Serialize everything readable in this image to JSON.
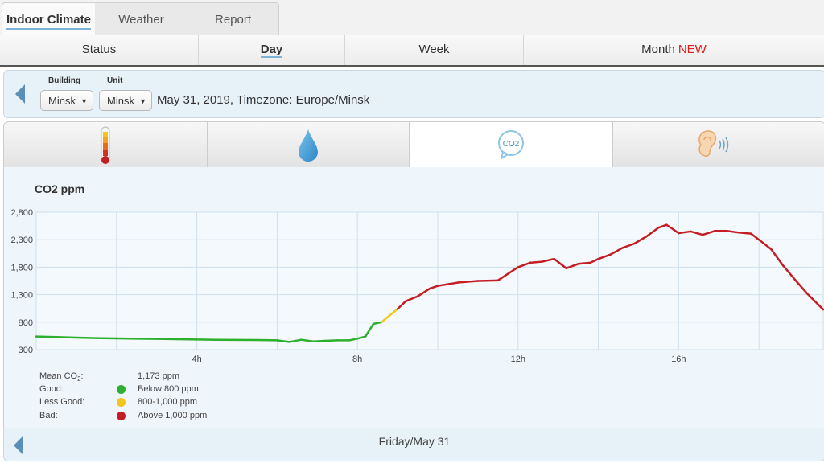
{
  "top_tabs": [
    "Indoor Climate",
    "Weather",
    "Report"
  ],
  "sub_tabs": {
    "status": "Status",
    "day": "Day",
    "week": "Week",
    "month": "Month",
    "month_badge": "NEW"
  },
  "selector": {
    "building_label": "Building",
    "building_value": "Minsk",
    "unit_label": "Unit",
    "unit_value": "Minsk",
    "date_text": "May 31, 2019, Timezone: Europe/Minsk"
  },
  "metric_tabs": [
    {
      "icon": "thermometer-icon",
      "active": false
    },
    {
      "icon": "humidity-drop-icon",
      "active": false
    },
    {
      "icon": "co2-icon",
      "label": "CO2",
      "active": true
    },
    {
      "icon": "noise-ear-icon",
      "active": false
    }
  ],
  "colors": {
    "good": "#2db02d",
    "less_good": "#f2c71b",
    "bad": "#c41e24",
    "accent": "#5b8fb5"
  },
  "legend": {
    "mean_label": "Mean CO",
    "mean_sub": "2",
    "mean_colon": ":",
    "mean_value": "1,173 ppm",
    "good_label": "Good:",
    "good_value": "Below 800 ppm",
    "less_label": "Less Good:",
    "less_value": "800-1,000 ppm",
    "bad_label": "Bad:",
    "bad_value": "Above 1,000 ppm"
  },
  "footer": {
    "date": "Friday/May 31"
  },
  "chart_data": {
    "type": "line",
    "title": "CO2 ppm",
    "xlabel": "",
    "ylabel": "",
    "ylim": [
      300,
      2800
    ],
    "yticks": [
      300,
      800,
      1300,
      1800,
      2300,
      2800
    ],
    "ytick_labels": [
      "300",
      "800",
      "1,300",
      "1,800",
      "2,300",
      "2,800"
    ],
    "xlim": [
      0,
      19.6
    ],
    "xticks": [
      4,
      8,
      12,
      16
    ],
    "xtick_labels": [
      "4h",
      "8h",
      "12h",
      "16h"
    ],
    "grid": true,
    "x": [
      0,
      0.5,
      1,
      1.5,
      2,
      2.5,
      3,
      3.5,
      4,
      4.5,
      5,
      5.5,
      6,
      6.3,
      6.6,
      6.9,
      7.2,
      7.5,
      7.8,
      8,
      8.2,
      8.4,
      8.6,
      8.8,
      9,
      9.2,
      9.5,
      9.8,
      10,
      10.5,
      11,
      11.5,
      12,
      12.3,
      12.6,
      12.9,
      13.2,
      13.5,
      13.8,
      14,
      14.3,
      14.6,
      14.9,
      15.2,
      15.5,
      15.7,
      16,
      16.3,
      16.6,
      16.9,
      17.2,
      17.5,
      17.8,
      18,
      18.3,
      18.6,
      18.9,
      19.2,
      19.6
    ],
    "y": [
      540,
      530,
      520,
      510,
      505,
      500,
      495,
      490,
      485,
      480,
      478,
      475,
      470,
      440,
      480,
      450,
      460,
      470,
      470,
      500,
      540,
      770,
      800,
      920,
      1040,
      1180,
      1270,
      1410,
      1460,
      1520,
      1550,
      1560,
      1800,
      1880,
      1900,
      1950,
      1780,
      1860,
      1880,
      1950,
      2030,
      2150,
      2230,
      2360,
      2520,
      2570,
      2420,
      2450,
      2390,
      2460,
      2460,
      2430,
      2410,
      2300,
      2130,
      1830,
      1570,
      1320,
      1030
    ],
    "thresholds": {
      "good_max": 800,
      "less_good_max": 1000
    }
  }
}
